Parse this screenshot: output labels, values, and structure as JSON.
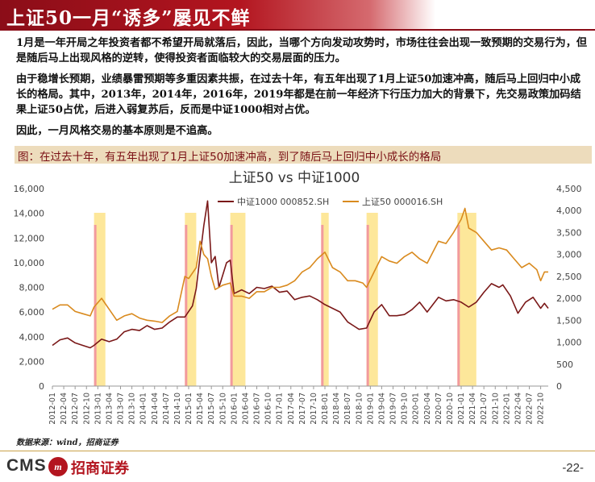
{
  "header": {
    "title": "上证50一月“诱多”屡见不鲜"
  },
  "paragraphs": [
    "1月是一年开局之年投资者都不希望开局就落后，因此，当哪个方向发动攻势时，市场往往会出现一致预期的交易行为，但是随后马上出现风格的逆转，使得投资者面临较大的交易层面的压力。",
    "由于稳增长预期，业绩暴雷预期等多重因素共振，在过去十年，有五年出现了1月上证50加速冲高，随后马上回归中小成长的格局。其中，2013年，2014年，2016年，2019年都是在前一年经济下行压力加大的背景下，先交易政策加码结果上证50占优，后进入弱复苏后，反而是中证1000相对占优。",
    "因此，一月风格交易的基本原则是不追高。"
  ],
  "chart_caption": "图：在过去十年，有五年出现了1月上证50加速冲高，到了随后马上回归中小成长的格局",
  "source": "数据来源：wind，招商证券",
  "footer": {
    "logo_text": "CMS",
    "logo_mark": "m",
    "company": "招商证券",
    "page": "-22-"
  },
  "colors": {
    "brand_red": "#8b0d18",
    "csi1000": "#7a1818",
    "sse50": "#d98a1e",
    "band": "#fde79a",
    "band_mark": "#f29a9e"
  },
  "chart_data": {
    "type": "line",
    "title": "上证50 vs 中证1000",
    "legend_position": "top",
    "grid": false,
    "y_left": {
      "min": 0,
      "max": 16000,
      "ticks": [
        "0",
        "2,000",
        "4,000",
        "6,000",
        "8,000",
        "10,000",
        "12,000",
        "14,000",
        "16,000"
      ]
    },
    "y_right": {
      "min": 0,
      "max": 4500,
      "ticks": [
        "0",
        "500",
        "1,000",
        "1,500",
        "2,000",
        "2,500",
        "3,000",
        "3,500",
        "4,000",
        "4,500"
      ]
    },
    "x_ticks": [
      "2012-01",
      "2012-04",
      "2012-07",
      "2012-10",
      "2013-01",
      "2013-04",
      "2013-07",
      "2013-10",
      "2014-01",
      "2014-04",
      "2014-07",
      "2014-10",
      "2015-01",
      "2015-04",
      "2015-07",
      "2015-10",
      "2016-01",
      "2016-04",
      "2016-07",
      "2016-10",
      "2017-01",
      "2017-04",
      "2017-07",
      "2017-10",
      "2018-01",
      "2018-04",
      "2018-07",
      "2018-10",
      "2019-01",
      "2019-04",
      "2019-07",
      "2019-10",
      "2020-01",
      "2020-04",
      "2020-07",
      "2020-10",
      "2021-01",
      "2021-04",
      "2021-07",
      "2021-10",
      "2022-01",
      "2022-04",
      "2022-07",
      "2022-10"
    ],
    "highlight_periods": [
      {
        "start": "2012-12",
        "end": "2013-03",
        "mark": "2012-12"
      },
      {
        "start": "2014-12",
        "end": "2015-03",
        "mark": "2014-12"
      },
      {
        "start": "2015-12",
        "end": "2016-04",
        "mark": "2015-12"
      },
      {
        "start": "2017-12",
        "end": "2018-02",
        "mark": "2017-12"
      },
      {
        "start": "2018-12",
        "end": "2019-03",
        "mark": "2018-12"
      },
      {
        "start": "2020-12",
        "end": "2021-05",
        "mark": "2020-12"
      }
    ],
    "series": [
      {
        "name": "中证1000 000852.SH",
        "axis": "left",
        "points": [
          [
            "2012-01",
            3300
          ],
          [
            "2012-03",
            3750
          ],
          [
            "2012-05",
            3900
          ],
          [
            "2012-07",
            3500
          ],
          [
            "2012-09",
            3300
          ],
          [
            "2012-11",
            3100
          ],
          [
            "2012-12",
            3300
          ],
          [
            "2013-02",
            3800
          ],
          [
            "2013-04",
            3600
          ],
          [
            "2013-06",
            3800
          ],
          [
            "2013-08",
            4400
          ],
          [
            "2013-10",
            4600
          ],
          [
            "2013-12",
            4500
          ],
          [
            "2014-02",
            4900
          ],
          [
            "2014-04",
            4600
          ],
          [
            "2014-06",
            4700
          ],
          [
            "2014-08",
            5200
          ],
          [
            "2014-10",
            5600
          ],
          [
            "2014-12",
            5600
          ],
          [
            "2015-02",
            6500
          ],
          [
            "2015-03",
            7900
          ],
          [
            "2015-04",
            10500
          ],
          [
            "2015-05",
            13000
          ],
          [
            "2015-06",
            15000
          ],
          [
            "2015-07",
            10000
          ],
          [
            "2015-08",
            10500
          ],
          [
            "2015-09",
            8000
          ],
          [
            "2015-11",
            10000
          ],
          [
            "2015-12",
            10200
          ],
          [
            "2016-01",
            7500
          ],
          [
            "2016-03",
            7800
          ],
          [
            "2016-05",
            7500
          ],
          [
            "2016-07",
            8000
          ],
          [
            "2016-09",
            7900
          ],
          [
            "2016-11",
            8100
          ],
          [
            "2017-01",
            7600
          ],
          [
            "2017-03",
            7700
          ],
          [
            "2017-05",
            7000
          ],
          [
            "2017-07",
            7200
          ],
          [
            "2017-09",
            7300
          ],
          [
            "2017-11",
            7000
          ],
          [
            "2018-01",
            6600
          ],
          [
            "2018-03",
            6300
          ],
          [
            "2018-05",
            6000
          ],
          [
            "2018-07",
            5200
          ],
          [
            "2018-09",
            4800
          ],
          [
            "2018-10",
            4600
          ],
          [
            "2018-12",
            4700
          ],
          [
            "2019-02",
            6000
          ],
          [
            "2019-04",
            6600
          ],
          [
            "2019-06",
            5700
          ],
          [
            "2019-08",
            5700
          ],
          [
            "2019-10",
            5800
          ],
          [
            "2019-12",
            6200
          ],
          [
            "2020-02",
            6800
          ],
          [
            "2020-04",
            6000
          ],
          [
            "2020-07",
            7200
          ],
          [
            "2020-09",
            6900
          ],
          [
            "2020-11",
            7000
          ],
          [
            "2021-01",
            6800
          ],
          [
            "2021-03",
            6400
          ],
          [
            "2021-05",
            6800
          ],
          [
            "2021-07",
            7600
          ],
          [
            "2021-09",
            8300
          ],
          [
            "2021-11",
            8000
          ],
          [
            "2021-12",
            8200
          ],
          [
            "2022-02",
            7300
          ],
          [
            "2022-04",
            5900
          ],
          [
            "2022-06",
            6800
          ],
          [
            "2022-08",
            7200
          ],
          [
            "2022-10",
            6300
          ],
          [
            "2022-11",
            6700
          ],
          [
            "2022-12",
            6300
          ]
        ]
      },
      {
        "name": "上证50 000016.SH",
        "axis": "right",
        "points": [
          [
            "2012-01",
            1750
          ],
          [
            "2012-03",
            1850
          ],
          [
            "2012-05",
            1850
          ],
          [
            "2012-07",
            1700
          ],
          [
            "2012-09",
            1650
          ],
          [
            "2012-11",
            1600
          ],
          [
            "2012-12",
            1800
          ],
          [
            "2013-02",
            2000
          ],
          [
            "2013-04",
            1750
          ],
          [
            "2013-06",
            1500
          ],
          [
            "2013-08",
            1600
          ],
          [
            "2013-10",
            1650
          ],
          [
            "2013-12",
            1550
          ],
          [
            "2014-02",
            1500
          ],
          [
            "2014-04",
            1480
          ],
          [
            "2014-06",
            1450
          ],
          [
            "2014-08",
            1600
          ],
          [
            "2014-10",
            1700
          ],
          [
            "2014-12",
            2500
          ],
          [
            "2015-01",
            2450
          ],
          [
            "2015-03",
            2700
          ],
          [
            "2015-04",
            3300
          ],
          [
            "2015-05",
            3000
          ],
          [
            "2015-06",
            2900
          ],
          [
            "2015-07",
            2500
          ],
          [
            "2015-08",
            2200
          ],
          [
            "2015-10",
            2300
          ],
          [
            "2015-12",
            2350
          ],
          [
            "2016-01",
            2050
          ],
          [
            "2016-03",
            2050
          ],
          [
            "2016-05",
            2000
          ],
          [
            "2016-07",
            2150
          ],
          [
            "2016-09",
            2150
          ],
          [
            "2016-11",
            2250
          ],
          [
            "2017-01",
            2250
          ],
          [
            "2017-03",
            2300
          ],
          [
            "2017-05",
            2400
          ],
          [
            "2017-07",
            2600
          ],
          [
            "2017-09",
            2700
          ],
          [
            "2017-11",
            2900
          ],
          [
            "2018-01",
            3050
          ],
          [
            "2018-03",
            2700
          ],
          [
            "2018-05",
            2600
          ],
          [
            "2018-07",
            2400
          ],
          [
            "2018-09",
            2400
          ],
          [
            "2018-11",
            2350
          ],
          [
            "2018-12",
            2250
          ],
          [
            "2019-02",
            2600
          ],
          [
            "2019-04",
            2950
          ],
          [
            "2019-06",
            2850
          ],
          [
            "2019-08",
            2800
          ],
          [
            "2019-10",
            2950
          ],
          [
            "2019-12",
            3050
          ],
          [
            "2020-02",
            2900
          ],
          [
            "2020-04",
            2800
          ],
          [
            "2020-07",
            3300
          ],
          [
            "2020-09",
            3250
          ],
          [
            "2020-11",
            3500
          ],
          [
            "2021-01",
            3800
          ],
          [
            "2021-02",
            4050
          ],
          [
            "2021-03",
            3600
          ],
          [
            "2021-05",
            3500
          ],
          [
            "2021-07",
            3300
          ],
          [
            "2021-09",
            3100
          ],
          [
            "2021-11",
            3150
          ],
          [
            "2022-01",
            3100
          ],
          [
            "2022-03",
            2900
          ],
          [
            "2022-05",
            2700
          ],
          [
            "2022-07",
            2800
          ],
          [
            "2022-09",
            2650
          ],
          [
            "2022-10",
            2400
          ],
          [
            "2022-11",
            2600
          ],
          [
            "2022-12",
            2600
          ]
        ]
      }
    ]
  }
}
